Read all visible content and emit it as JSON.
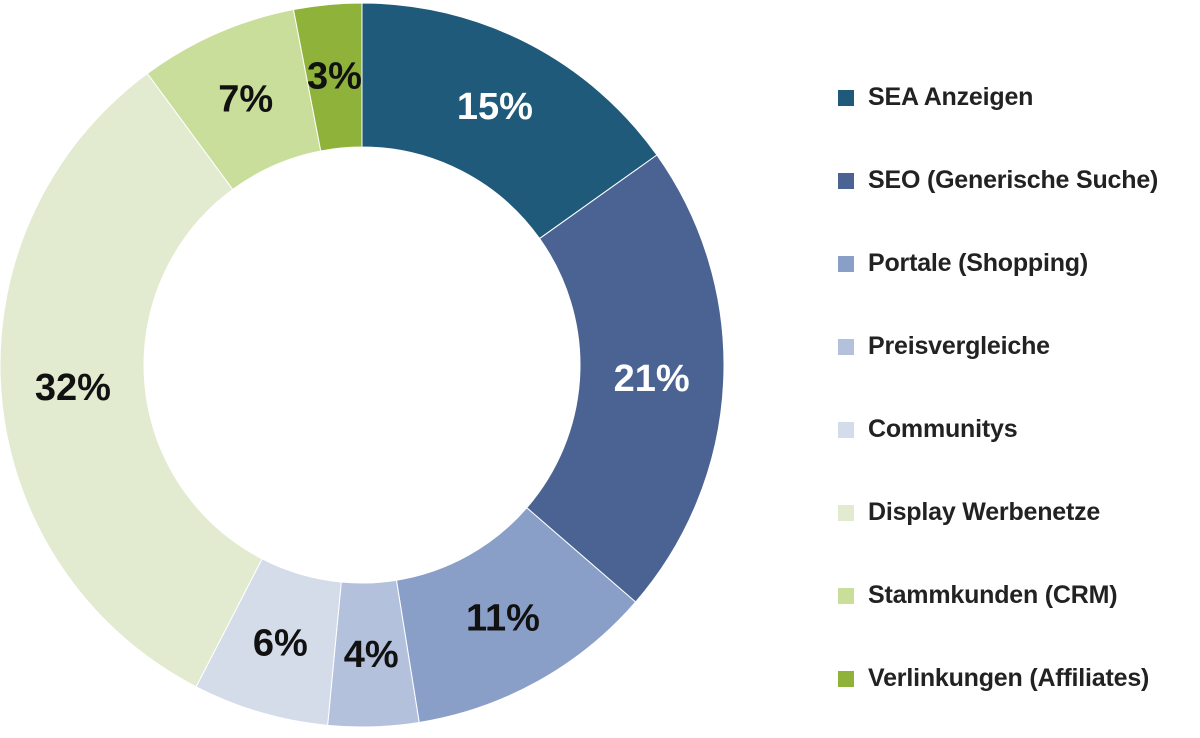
{
  "chart_data": {
    "type": "donut",
    "title": "",
    "categories": [
      "SEA Anzeigen",
      "SEO (Generische Suche)",
      "Portale (Shopping)",
      "Preisvergleiche",
      "Communitys",
      "Display Werbenetze",
      "Stammkunden (CRM)",
      "Verlinkungen (Affiliates)"
    ],
    "values": [
      15,
      21,
      11,
      4,
      6,
      32,
      7,
      3
    ],
    "value_labels": [
      "15%",
      "21%",
      "11%",
      "4%",
      "6%",
      "32%",
      "7%",
      "3%"
    ],
    "colors": [
      "#1f5a7a",
      "#4a6392",
      "#8a9fc7",
      "#b3c1dc",
      "#d4dcea",
      "#e2ebcf",
      "#c9de9a",
      "#8fb33a"
    ],
    "label_colors": [
      "#ffffff",
      "#ffffff",
      "#111111",
      "#111111",
      "#111111",
      "#111111",
      "#111111",
      "#111111"
    ],
    "start_angle_deg": 0,
    "direction": "clockwise",
    "legend_position": "right"
  }
}
